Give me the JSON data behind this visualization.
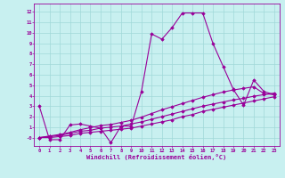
{
  "title": "",
  "xlabel": "Windchill (Refroidissement éolien,°C)",
  "ylabel": "",
  "background_color": "#c8f0f0",
  "line_color": "#990099",
  "grid_color": "#a0d8d8",
  "xlim": [
    -0.5,
    23.5
  ],
  "ylim": [
    -0.8,
    12.8
  ],
  "xticks": [
    0,
    1,
    2,
    3,
    4,
    5,
    6,
    7,
    8,
    9,
    10,
    11,
    12,
    13,
    14,
    15,
    16,
    17,
    18,
    19,
    20,
    21,
    22,
    23
  ],
  "yticks": [
    0,
    1,
    2,
    3,
    4,
    5,
    6,
    7,
    8,
    9,
    10,
    11,
    12
  ],
  "ytick_labels": [
    "-0",
    "1",
    "2",
    "3",
    "4",
    "5",
    "6",
    "7",
    "8",
    "9",
    "10",
    "11",
    "12"
  ],
  "series": [
    [
      3.0,
      -0.2,
      -0.2,
      1.2,
      1.3,
      1.1,
      0.9,
      -0.5,
      1.1,
      1.1,
      4.4,
      9.9,
      9.4,
      10.5,
      11.9,
      11.9,
      11.9,
      9.0,
      6.8,
      4.6,
      3.1,
      5.5,
      4.4,
      4.1
    ],
    [
      0.0,
      0.0,
      0.1,
      0.2,
      0.4,
      0.5,
      0.6,
      0.7,
      0.8,
      0.9,
      1.1,
      1.3,
      1.5,
      1.7,
      2.0,
      2.2,
      2.5,
      2.7,
      2.9,
      3.1,
      3.3,
      3.5,
      3.7,
      3.9
    ],
    [
      0.0,
      0.1,
      0.2,
      0.4,
      0.6,
      0.7,
      0.9,
      1.0,
      1.1,
      1.3,
      1.5,
      1.75,
      2.0,
      2.25,
      2.5,
      2.75,
      3.0,
      3.2,
      3.4,
      3.6,
      3.75,
      3.95,
      4.1,
      4.25
    ],
    [
      0.0,
      0.15,
      0.3,
      0.5,
      0.75,
      0.95,
      1.15,
      1.25,
      1.45,
      1.65,
      1.95,
      2.3,
      2.65,
      2.95,
      3.25,
      3.55,
      3.85,
      4.1,
      4.35,
      4.55,
      4.7,
      4.85,
      4.2,
      4.1
    ]
  ]
}
